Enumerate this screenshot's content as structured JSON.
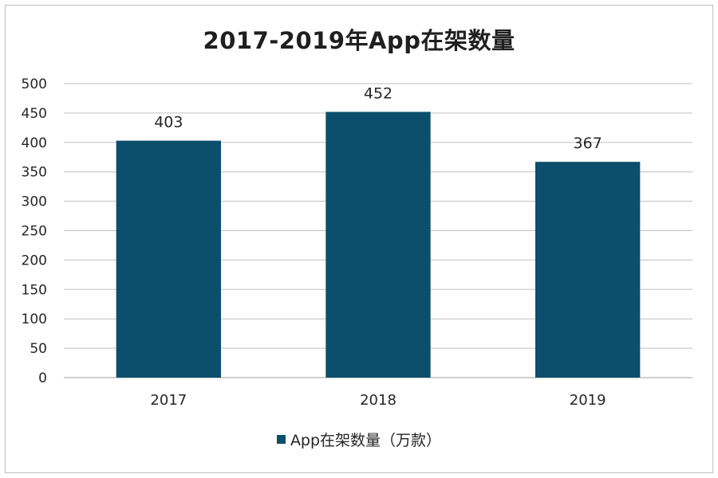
{
  "chart_data": {
    "type": "bar",
    "title": "2017-2019年App在架数量",
    "categories": [
      "2017",
      "2018",
      "2019"
    ],
    "series": [
      {
        "name": "App在架数量（万款）",
        "values": [
          403,
          452,
          367
        ]
      }
    ],
    "data_labels": [
      "403",
      "452",
      "367"
    ],
    "ylim": [
      0,
      500
    ],
    "yticks": [
      0,
      50,
      100,
      150,
      200,
      250,
      300,
      350,
      400,
      450,
      500
    ],
    "xlabel": "",
    "ylabel": "",
    "grid": true,
    "legend_position": "bottom",
    "colors": {
      "bar": "#0b4f6c",
      "grid": "#bfbfbf",
      "axis_text": "#262626"
    }
  }
}
